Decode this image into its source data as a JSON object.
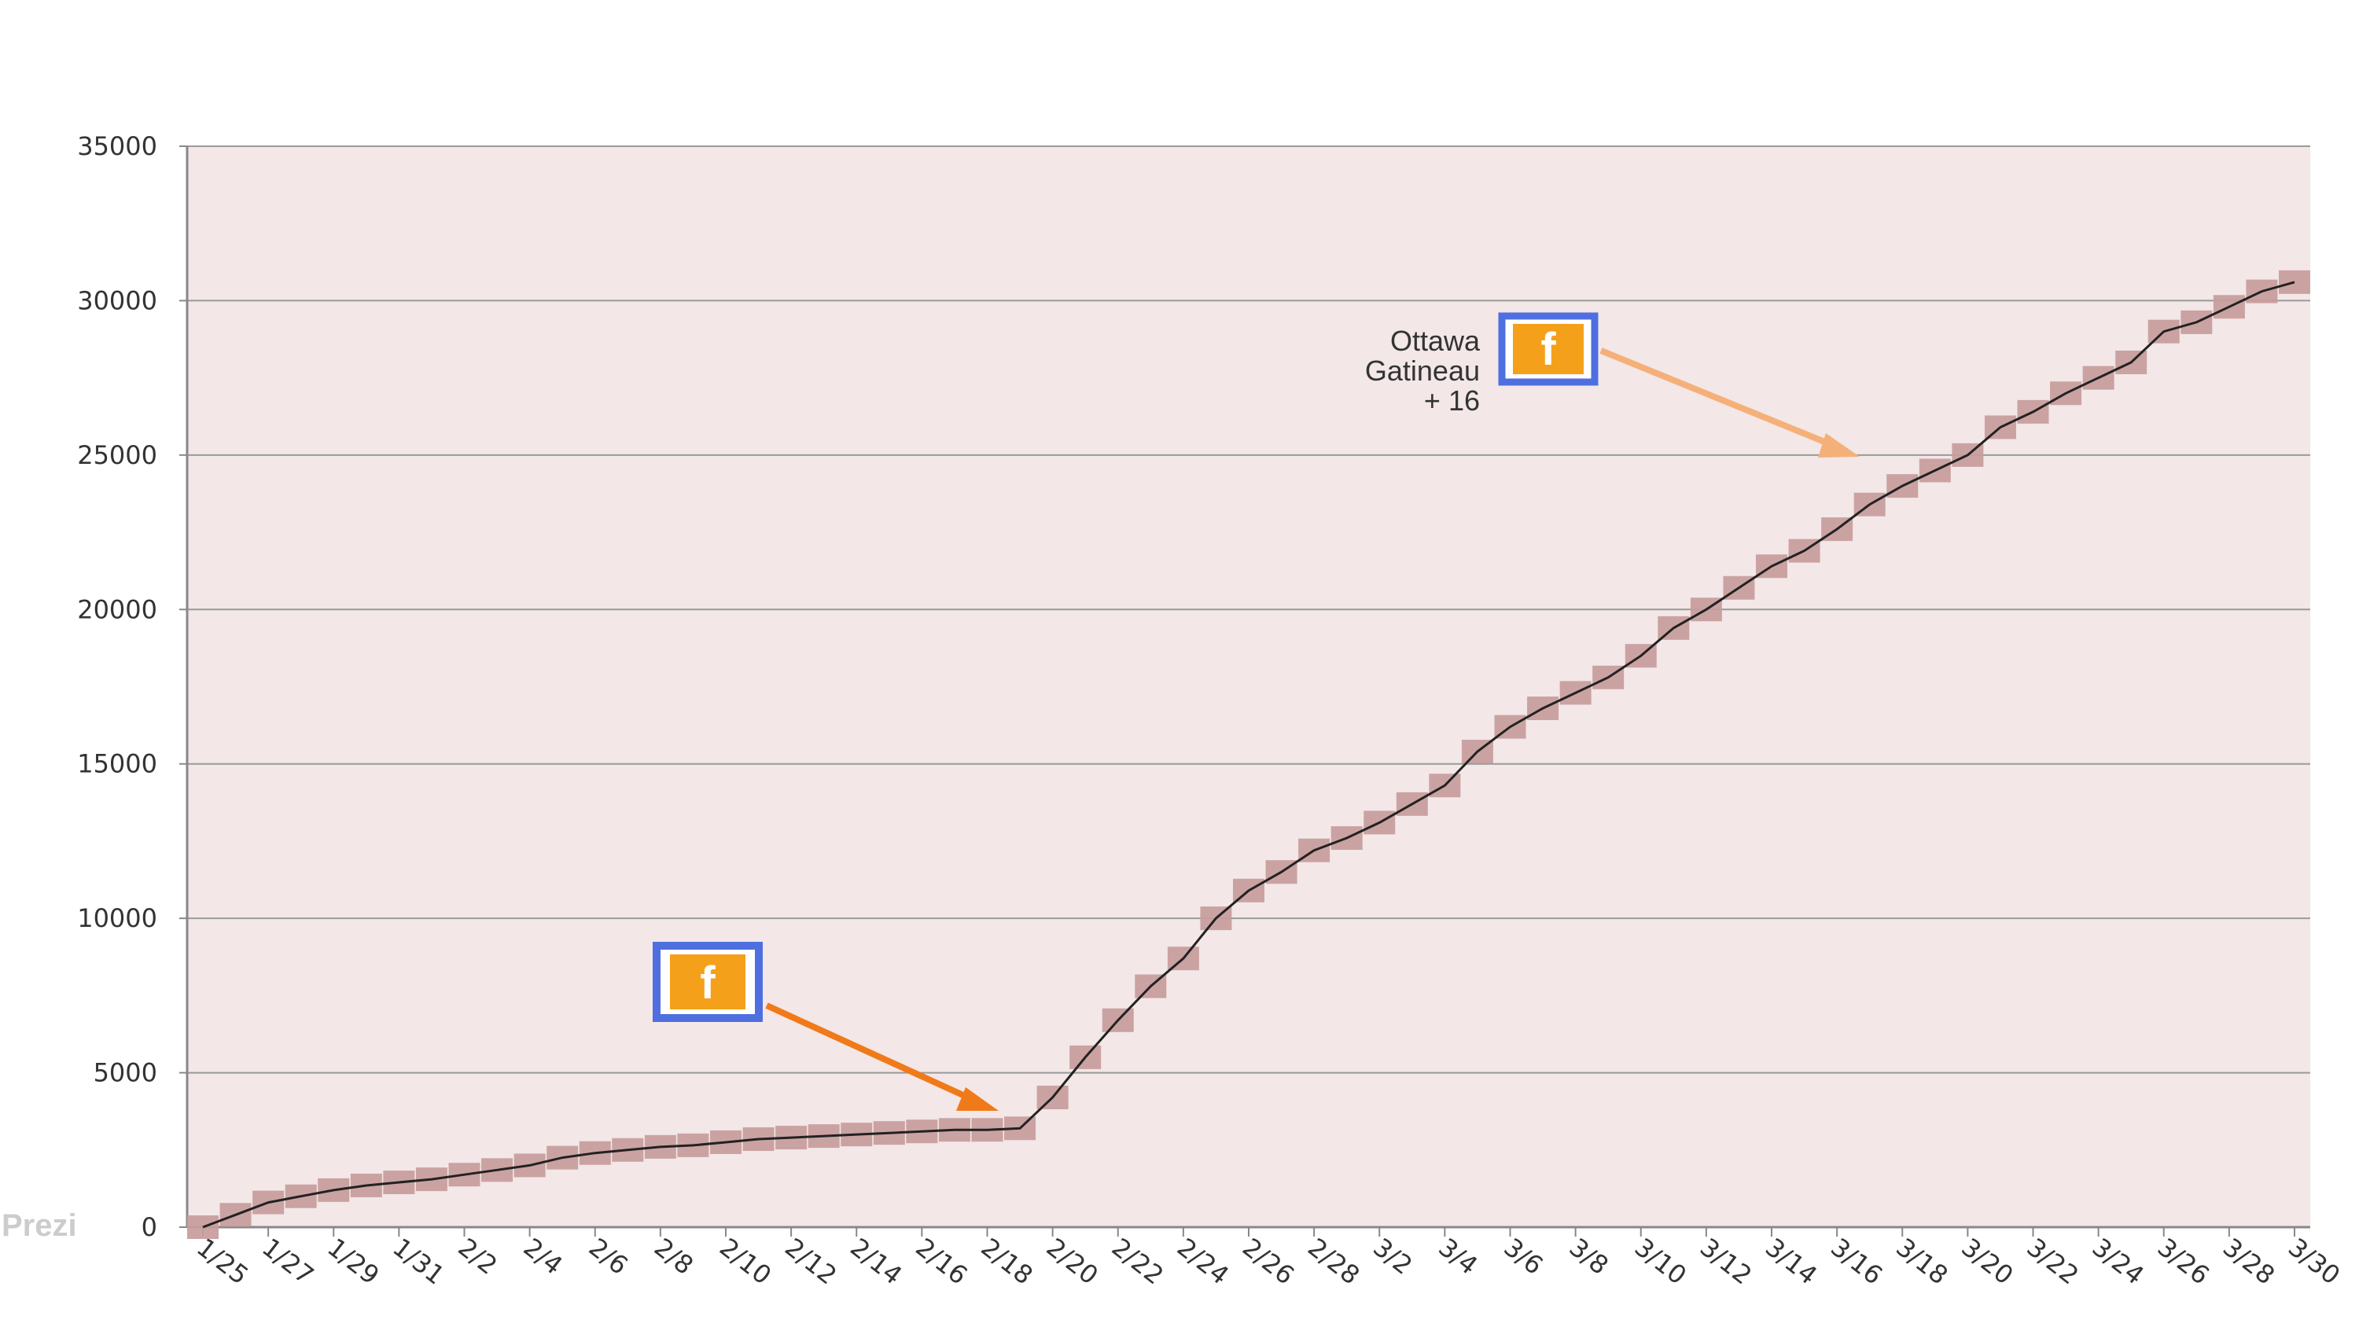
{
  "watermark": "Prezi",
  "colors": {
    "plot_bg": "#f3e7e7",
    "grid": "#9a9a9a",
    "axis": "#888888",
    "marker": "#c89c9c",
    "trend": "#222222",
    "arrow_1": "#f07a1a",
    "arrow_2": "#f5b07a",
    "fb_border": "#4f6fe0",
    "fb_fill": "#f5a01a"
  },
  "chart_data": {
    "type": "line",
    "xlabel": "",
    "ylabel": "",
    "ylim": [
      0,
      35000
    ],
    "yticks": [
      0,
      5000,
      10000,
      15000,
      20000,
      25000,
      30000,
      35000
    ],
    "xtick_labels": [
      "1/25",
      "1/27",
      "1/29",
      "1/31",
      "2/2",
      "2/4",
      "2/6",
      "2/8",
      "2/10",
      "2/12",
      "2/14",
      "2/16",
      "2/18",
      "2/20",
      "2/22",
      "2/24",
      "2/26",
      "2/28",
      "3/2",
      "3/4",
      "3/6",
      "3/8",
      "3/10",
      "3/12",
      "3/14",
      "3/16",
      "3/18",
      "3/20",
      "3/22",
      "3/24",
      "3/26",
      "3/28",
      "3/30"
    ],
    "grid": true,
    "series": [
      {
        "marker": "square",
        "x": [
          "1/25",
          "1/26",
          "1/27",
          "1/28",
          "1/29",
          "1/30",
          "1/31",
          "2/1",
          "2/2",
          "2/3",
          "2/4",
          "2/5",
          "2/6",
          "2/7",
          "2/8",
          "2/9",
          "2/10",
          "2/11",
          "2/12",
          "2/13",
          "2/14",
          "2/15",
          "2/16",
          "2/17",
          "2/18",
          "2/19",
          "2/20",
          "2/21",
          "2/22",
          "2/23",
          "2/24",
          "2/25",
          "2/26",
          "2/27",
          "2/28",
          "3/1",
          "3/2",
          "3/3",
          "3/4",
          "3/5",
          "3/6",
          "3/7",
          "3/8",
          "3/9",
          "3/10",
          "3/11",
          "3/12",
          "3/13",
          "3/14",
          "3/15",
          "3/16",
          "3/17",
          "3/18",
          "3/19",
          "3/20",
          "3/21",
          "3/22",
          "3/23",
          "3/24",
          "3/25",
          "3/26",
          "3/27",
          "3/28",
          "3/29",
          "3/30"
        ],
        "values": [
          0,
          400,
          800,
          1000,
          1200,
          1350,
          1450,
          1550,
          1700,
          1850,
          2000,
          2250,
          2400,
          2500,
          2600,
          2650,
          2750,
          2850,
          2900,
          2950,
          3000,
          3050,
          3100,
          3150,
          3150,
          3200,
          4200,
          5500,
          6700,
          7800,
          8700,
          10000,
          10900,
          11500,
          12200,
          12600,
          13100,
          13700,
          14300,
          15400,
          16200,
          16800,
          17300,
          17800,
          18500,
          19400,
          20000,
          20700,
          21400,
          21900,
          22600,
          23400,
          24000,
          24500,
          25000,
          25900,
          26400,
          27000,
          27500,
          28000,
          29000,
          29300,
          29800,
          30300,
          30600
        ]
      }
    ],
    "annotations": [
      {
        "icon": "facebook-icon",
        "target_x": "2/19",
        "target_y": 3700
      },
      {
        "icon": "facebook-icon",
        "text_lines": [
          "Ottawa",
          "Gatineau",
          "+ 16"
        ],
        "target_x": "3/17",
        "target_y": 24900
      }
    ]
  }
}
